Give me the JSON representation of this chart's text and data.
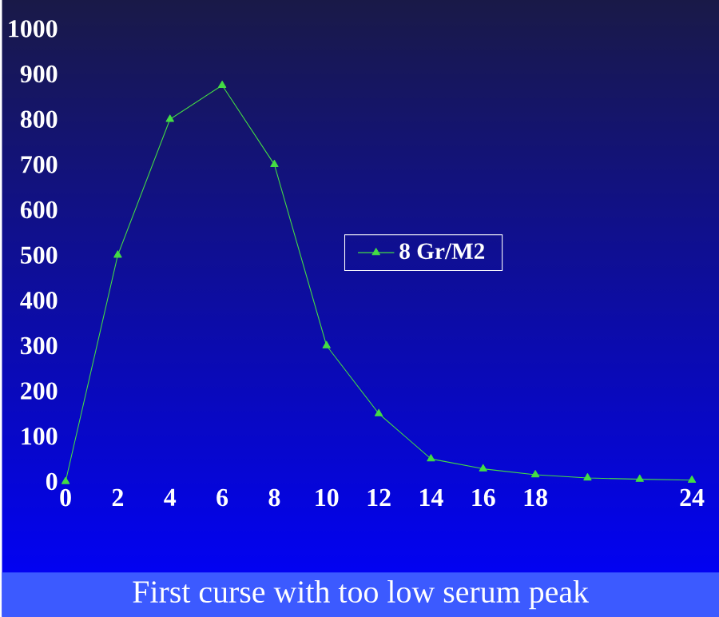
{
  "chart_data": {
    "type": "line",
    "x": [
      0,
      2,
      4,
      6,
      8,
      10,
      12,
      14,
      16,
      18,
      20,
      22,
      24
    ],
    "series": [
      {
        "name": "8  Gr/M2",
        "color": "#44dd44",
        "values": [
          0,
          500,
          800,
          875,
          700,
          300,
          150,
          50,
          28,
          15,
          8,
          5,
          3
        ]
      }
    ],
    "xlim": [
      0,
      24
    ],
    "ylim": [
      0,
      1000
    ],
    "xticks": [
      0,
      2,
      4,
      6,
      8,
      10,
      12,
      14,
      16,
      18,
      24
    ],
    "yticks": [
      0,
      100,
      200,
      300,
      400,
      500,
      600,
      700,
      800,
      900,
      1000
    ],
    "legend": "right",
    "marker": "triangle",
    "line_style": "solid",
    "grid": false,
    "annotations": [
      "First curse with too low serum peak"
    ]
  }
}
